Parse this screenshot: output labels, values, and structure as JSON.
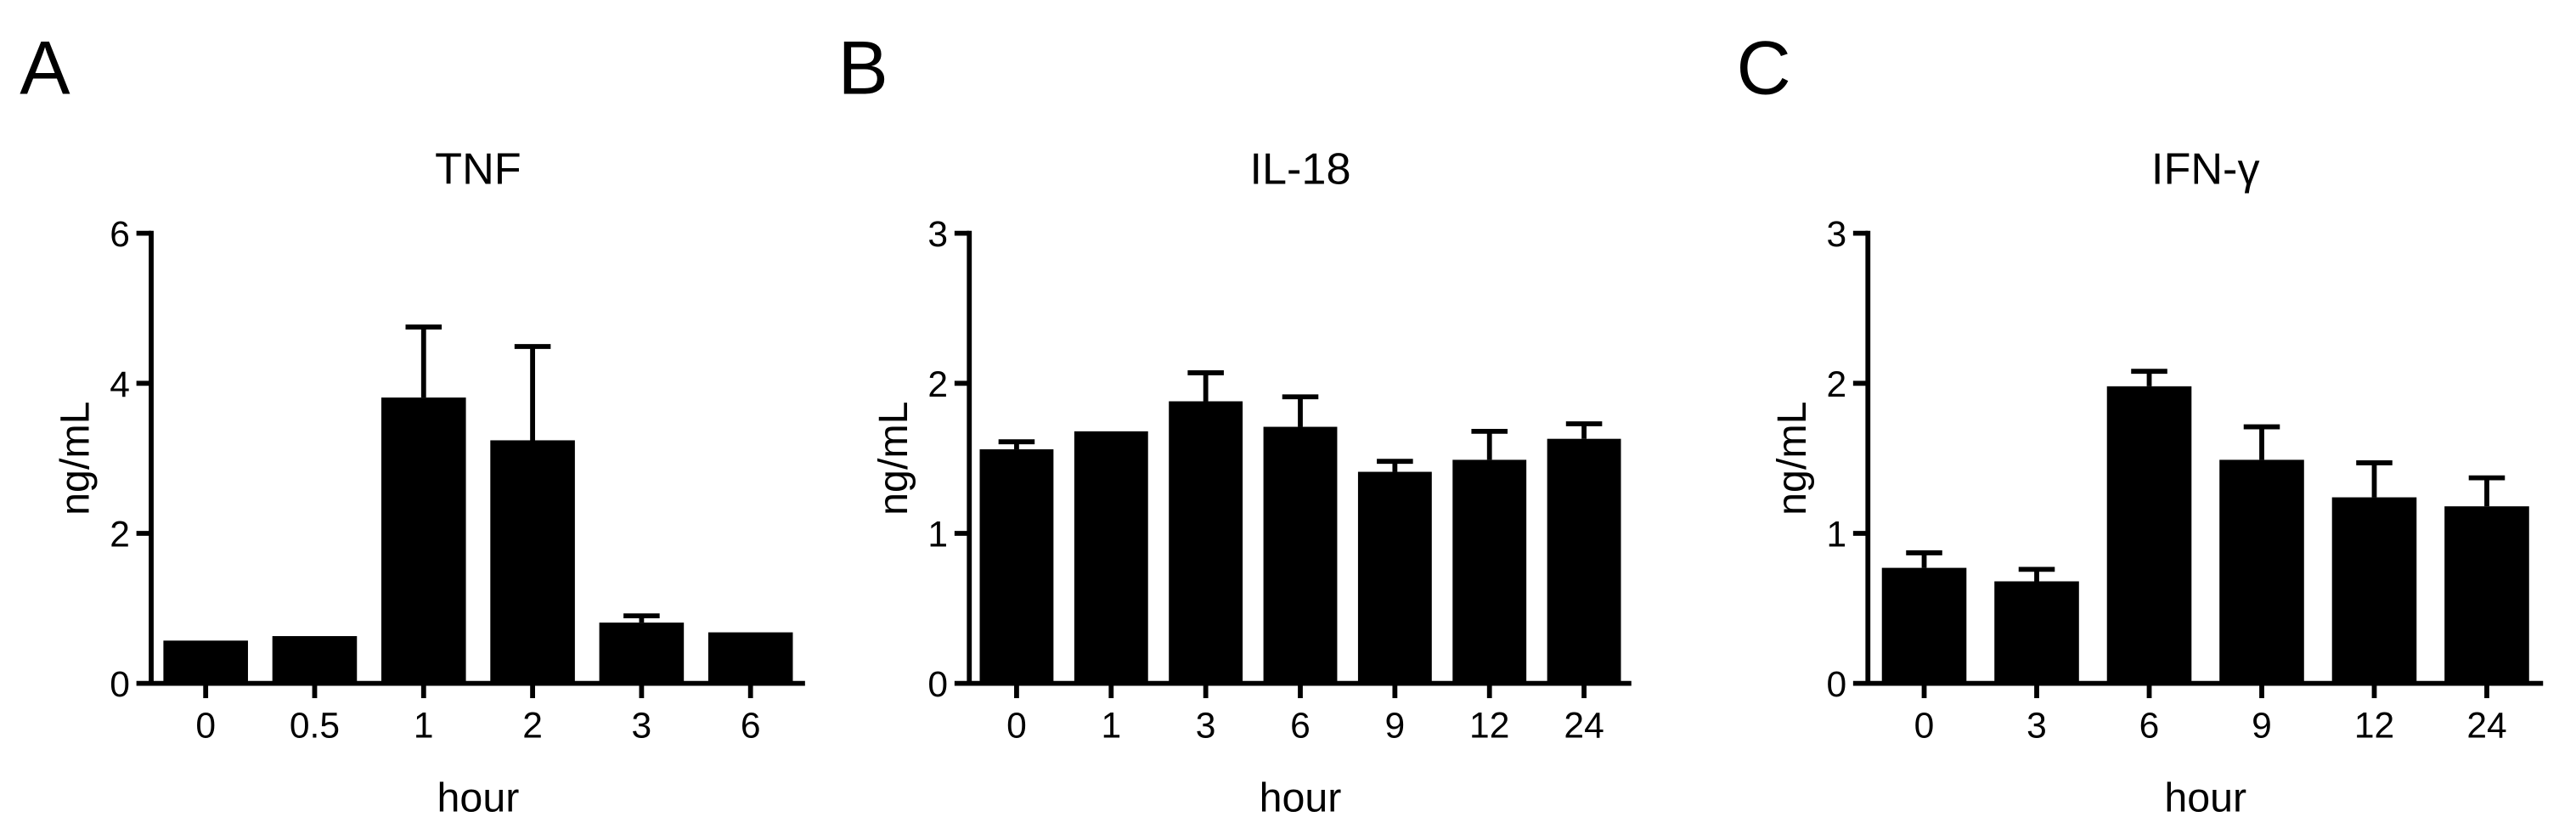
{
  "chart_data": [
    {
      "type": "bar",
      "panel": "A",
      "title": "TNF",
      "xlabel": "hour",
      "ylabel": "ng/mL",
      "categories": [
        "0",
        "0.5",
        "1",
        "2",
        "3",
        "6"
      ],
      "values": [
        0.57,
        0.63,
        3.81,
        3.24,
        0.81,
        0.68
      ],
      "errors": [
        null,
        null,
        0.94,
        1.25,
        0.09,
        null
      ],
      "color": "#000000",
      "ylim": [
        0,
        6
      ],
      "yticks": [
        0,
        2,
        4,
        6
      ]
    },
    {
      "type": "bar",
      "panel": "B",
      "title": "IL-18",
      "xlabel": "hour",
      "ylabel": "ng/mL",
      "categories": [
        "0",
        "1",
        "3",
        "6",
        "9",
        "12",
        "24"
      ],
      "values": [
        1.56,
        1.68,
        1.88,
        1.71,
        1.41,
        1.49,
        1.63
      ],
      "errors": [
        0.05,
        null,
        0.19,
        0.2,
        0.07,
        0.19,
        0.1
      ],
      "color": "#000000",
      "ylim": [
        0,
        3
      ],
      "yticks": [
        0,
        1,
        2,
        3
      ]
    },
    {
      "type": "bar",
      "panel": "C",
      "title": "IFN-γ",
      "xlabel": "hour",
      "ylabel": "ng/mL",
      "categories": [
        "0",
        "3",
        "6",
        "9",
        "12",
        "24"
      ],
      "values": [
        0.77,
        0.68,
        1.98,
        1.49,
        1.24,
        1.18
      ],
      "errors": [
        0.1,
        0.08,
        0.1,
        0.22,
        0.23,
        0.19
      ],
      "color": "#000000",
      "ylim": [
        0,
        3
      ],
      "yticks": [
        0,
        1,
        2,
        3
      ]
    }
  ]
}
